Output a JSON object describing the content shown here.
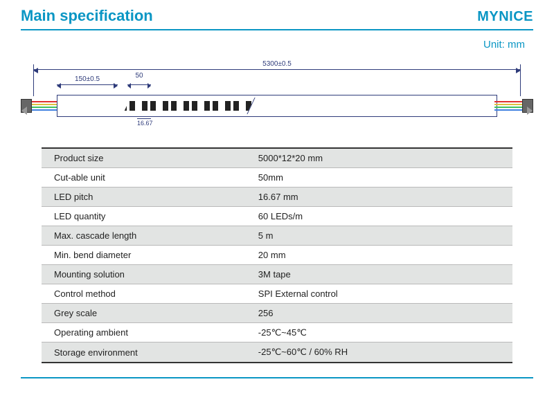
{
  "header": {
    "title": "Main specification",
    "brand": "MYNICE",
    "unit_label": "Unit: mm"
  },
  "colors": {
    "accent": "#0a96c4",
    "dim_line": "#2e3b7a",
    "row_alt_bg": "#e2e4e3",
    "row_bg": "#ffffff",
    "border_grey": "#b9b9b9",
    "text": "#222222"
  },
  "diagram": {
    "overall_length": "5300±0.5",
    "lead_length": "150±0.5",
    "cut_unit": "50",
    "led_pitch": "16.67",
    "wire_colors": [
      "#e03030",
      "#e0c040",
      "#40c060",
      "#4080e0"
    ]
  },
  "specs": [
    {
      "label": "Product size",
      "value": "5000*12*20 mm"
    },
    {
      "label": "Cut-able unit",
      "value": "50mm"
    },
    {
      "label": "LED pitch",
      "value": "16.67 mm"
    },
    {
      "label": "LED quantity",
      "value": "60 LEDs/m"
    },
    {
      "label": "Max. cascade length",
      "value": "5 m"
    },
    {
      "label": "Min. bend diameter",
      "value": "20 mm"
    },
    {
      "label": "Mounting solution",
      "value": "3M tape"
    },
    {
      "label": "Control method",
      "value": "SPI  External control"
    },
    {
      "label": "Grey scale",
      "value": "256"
    },
    {
      "label": "Operating ambient",
      "value": "-25℃~45℃"
    },
    {
      "label": "Storage environment",
      "value": "-25℃~60℃ / 60% RH"
    }
  ]
}
